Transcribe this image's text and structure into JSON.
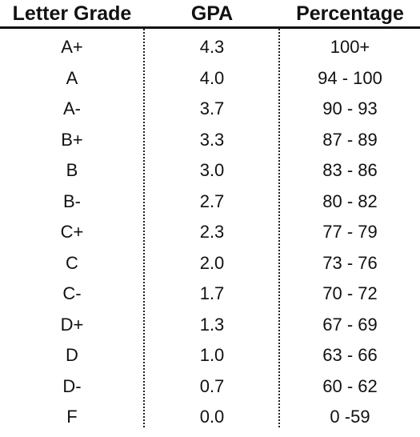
{
  "headers": {
    "letter": "Letter Grade",
    "gpa": "GPA",
    "percentage": "Percentage"
  },
  "rows": [
    {
      "letter": "A+",
      "gpa": "4.3",
      "percentage": "100+"
    },
    {
      "letter": "A",
      "gpa": "4.0",
      "percentage": "94 - 100"
    },
    {
      "letter": "A-",
      "gpa": "3.7",
      "percentage": "90 - 93"
    },
    {
      "letter": "B+",
      "gpa": "3.3",
      "percentage": "87 - 89"
    },
    {
      "letter": "B",
      "gpa": "3.0",
      "percentage": "83 - 86"
    },
    {
      "letter": "B-",
      "gpa": "2.7",
      "percentage": "80 - 82"
    },
    {
      "letter": "C+",
      "gpa": "2.3",
      "percentage": "77 - 79"
    },
    {
      "letter": "C",
      "gpa": "2.0",
      "percentage": "73 - 76"
    },
    {
      "letter": "C-",
      "gpa": "1.7",
      "percentage": "70 - 72"
    },
    {
      "letter": "D+",
      "gpa": "1.3",
      "percentage": "67 - 69"
    },
    {
      "letter": "D",
      "gpa": "1.0",
      "percentage": "63 - 66"
    },
    {
      "letter": "D-",
      "gpa": "0.7",
      "percentage": "60 - 62"
    },
    {
      "letter": "F",
      "gpa": "0.0",
      "percentage": "0 -59"
    }
  ]
}
